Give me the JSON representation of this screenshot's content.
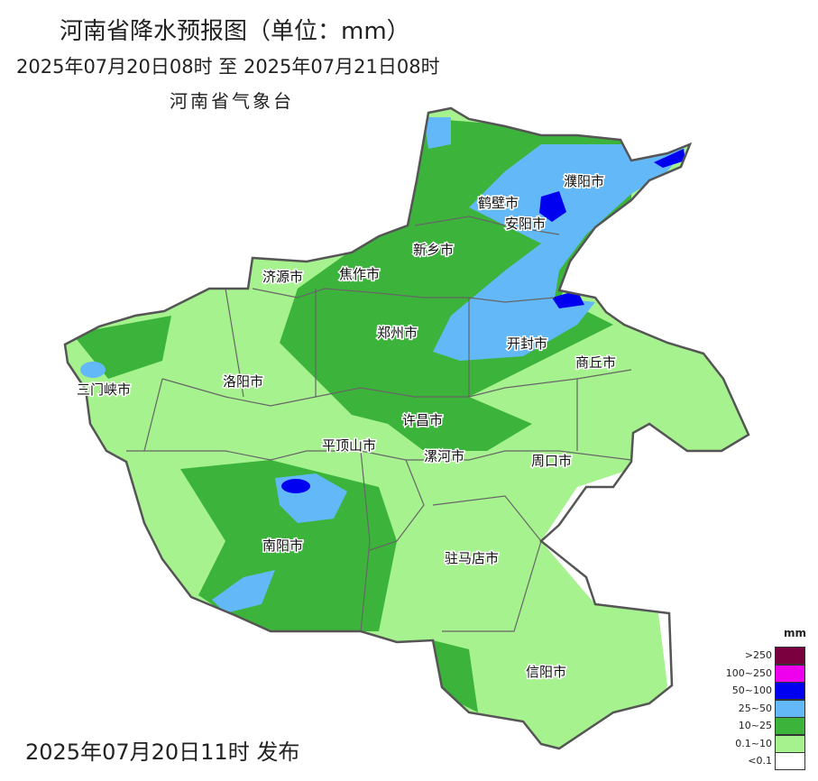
{
  "title": "河南省降水预报图（单位：mm）",
  "period": "2025年07月20日08时  至  2025年07月21日08时",
  "issuer": "河南省气象台",
  "footer": "2025年07月20日11时 发布",
  "cities": [
    "濮阳市",
    "鹤壁市",
    "安阳市",
    "新乡市",
    "济源市",
    "焦作市",
    "郑州市",
    "开封市",
    "商丘市",
    "三门峡市",
    "洛阳市",
    "许昌市",
    "平顶山市",
    "漯河市",
    "周口市",
    "南阳市",
    "驻马店市",
    "信阳市"
  ],
  "legend": {
    "unit": "mm",
    "items": [
      {
        "label": ">250",
        "color": "#7a0040"
      },
      {
        "label": "100~250",
        "color": "#ee00ee"
      },
      {
        "label": "50~100",
        "color": "#0000f0"
      },
      {
        "label": "25~50",
        "color": "#63b8f8"
      },
      {
        "label": "10~25",
        "color": "#3cb43c"
      },
      {
        "label": "0.1~10",
        "color": "#a6f28e"
      },
      {
        "label": "<0.1",
        "color": "#ffffff"
      }
    ]
  }
}
